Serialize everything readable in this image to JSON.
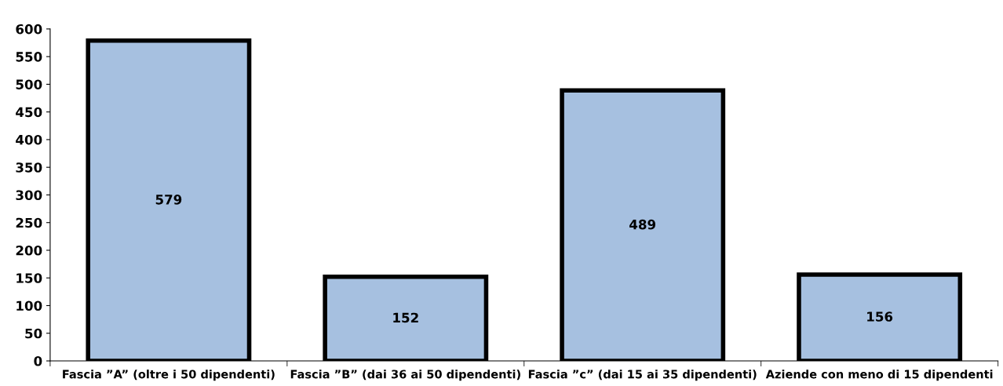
{
  "chart_data": {
    "type": "bar",
    "categories": [
      "Fascia ”A” (oltre i 50 dipendenti)",
      "Fascia ”B” (dai 36 ai 50 dipendenti)",
      "Fascia ”c” (dai 15 ai 35 dipendenti)",
      "Aziende con meno di 15 dipendenti"
    ],
    "values": [
      579,
      152,
      489,
      156
    ],
    "color": "#a6c0e0",
    "ylim": [
      0,
      600
    ],
    "yticks": [
      0,
      50,
      100,
      150,
      200,
      250,
      300,
      350,
      400,
      450,
      500,
      550,
      600
    ],
    "data_labels": true,
    "grid": false,
    "legend": false
  }
}
